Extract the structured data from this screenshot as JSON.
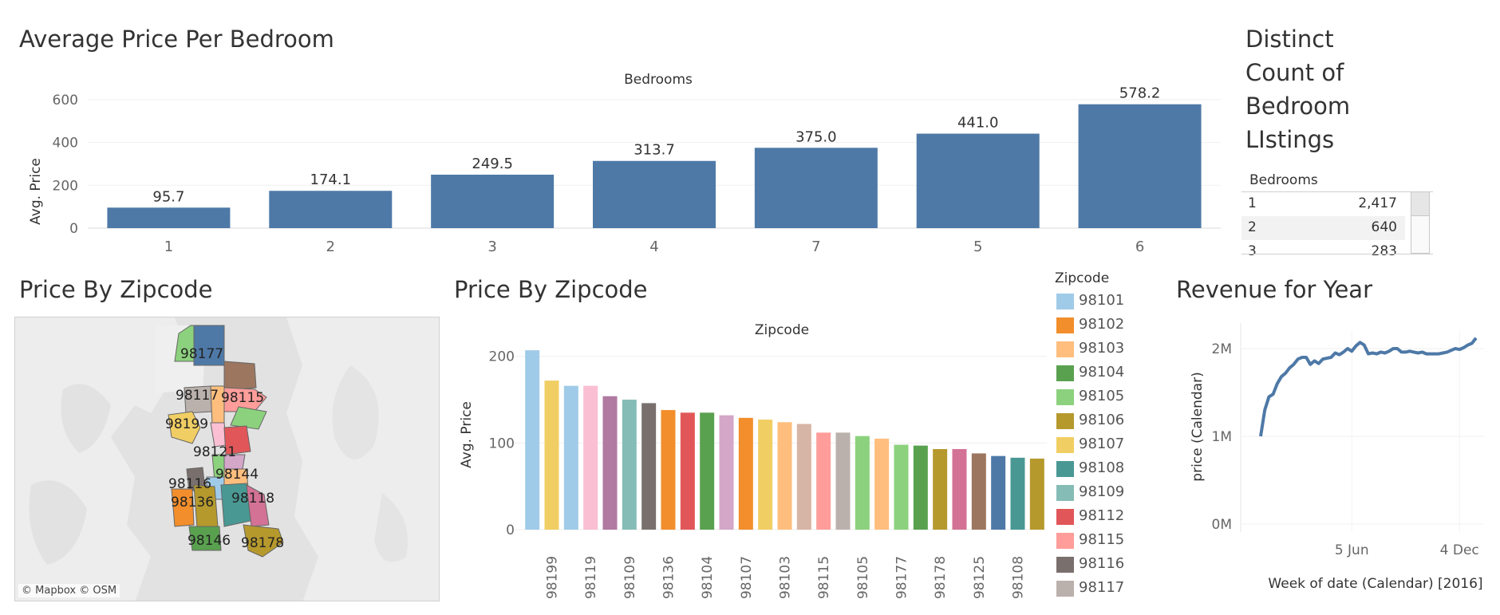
{
  "bedrooms_chart": {
    "title": "Average Price Per Bedroom",
    "header": "Bedrooms",
    "y_label": "Avg. Price",
    "y_ticks": [
      "0",
      "200",
      "400",
      "600"
    ]
  },
  "distinct_count": {
    "title_lines": [
      "Distinct",
      "Count of",
      "Bedroom",
      "LIstings"
    ],
    "column_header": "Bedrooms",
    "rows": [
      {
        "bedrooms": "1",
        "count": "2,417"
      },
      {
        "bedrooms": "2",
        "count": "640"
      },
      {
        "bedrooms": "3",
        "count": "283"
      }
    ]
  },
  "map": {
    "title": "Price By Zipcode",
    "attribution": "© Mapbox © OSM",
    "labels": [
      "98177",
      "98117",
      "98115",
      "98199",
      "98121",
      "98144",
      "98116",
      "98118",
      "98136",
      "98146",
      "98178"
    ]
  },
  "zip_chart": {
    "title": "Price By Zipcode",
    "header": "Zipcode",
    "y_label": "Avg. Price",
    "y_ticks": [
      "0",
      "100",
      "200"
    ]
  },
  "legend": {
    "title": "Zipcode",
    "items": [
      {
        "label": "98101",
        "color": "#a0cbe8"
      },
      {
        "label": "98102",
        "color": "#f28e2b"
      },
      {
        "label": "98103",
        "color": "#ffbe7d"
      },
      {
        "label": "98104",
        "color": "#59a14f"
      },
      {
        "label": "98105",
        "color": "#8cd17d"
      },
      {
        "label": "98106",
        "color": "#b6992d"
      },
      {
        "label": "98107",
        "color": "#f1ce63"
      },
      {
        "label": "98108",
        "color": "#499894"
      },
      {
        "label": "98109",
        "color": "#86bcb6"
      },
      {
        "label": "98112",
        "color": "#e15759"
      },
      {
        "label": "98115",
        "color": "#ff9d9a"
      },
      {
        "label": "98116",
        "color": "#79706e"
      },
      {
        "label": "98117",
        "color": "#bab0ac"
      }
    ]
  },
  "revenue": {
    "title": "Revenue for Year",
    "y_label": "price (Calendar)",
    "x_label": "Week of date (Calendar) [2016]",
    "y_ticks": [
      "0M",
      "1M",
      "2M"
    ],
    "x_ticks": [
      "5 Jun",
      "4 Dec"
    ]
  },
  "chart_data": [
    {
      "type": "bar",
      "title": "Average Price Per Bedroom",
      "xlabel": "Bedrooms",
      "ylabel": "Avg. Price",
      "categories": [
        "1",
        "2",
        "3",
        "4",
        "7",
        "5",
        "6"
      ],
      "values": [
        95.7,
        174.1,
        249.5,
        313.7,
        375.0,
        441.0,
        578.2
      ],
      "value_labels": [
        "95.7",
        "174.1",
        "249.5",
        "313.7",
        "375.0",
        "441.0",
        "578.2"
      ],
      "ylim": [
        0,
        700
      ],
      "color": "#4e79a7"
    },
    {
      "type": "bar",
      "title": "Price By Zipcode",
      "xlabel": "Zipcode",
      "ylabel": "Avg. Price",
      "ylim": [
        0,
        220
      ],
      "bars": [
        {
          "value": 207,
          "color": "#a0cbe8"
        },
        {
          "value": 172,
          "color": "#f1ce63",
          "label": "98199"
        },
        {
          "value": 166,
          "color": "#a0cbe8"
        },
        {
          "value": 166,
          "color": "#fabfd2",
          "label": "98119"
        },
        {
          "value": 154,
          "color": "#b07aa1"
        },
        {
          "value": 150,
          "color": "#86bcb6",
          "label": "98109"
        },
        {
          "value": 146,
          "color": "#79706e"
        },
        {
          "value": 138,
          "color": "#f28e2b",
          "label": "98136"
        },
        {
          "value": 135,
          "color": "#e15759"
        },
        {
          "value": 135,
          "color": "#59a14f",
          "label": "98104"
        },
        {
          "value": 132,
          "color": "#d4a6c8"
        },
        {
          "value": 129,
          "color": "#f28e2b",
          "label": "98107"
        },
        {
          "value": 127,
          "color": "#f1ce63"
        },
        {
          "value": 124,
          "color": "#ffbe7d",
          "label": "98103"
        },
        {
          "value": 122,
          "color": "#d7b5a6"
        },
        {
          "value": 112,
          "color": "#ff9d9a",
          "label": "98115"
        },
        {
          "value": 112,
          "color": "#bab0ac"
        },
        {
          "value": 108,
          "color": "#8cd17d",
          "label": "98105"
        },
        {
          "value": 105,
          "color": "#ffbe7d"
        },
        {
          "value": 98,
          "color": "#8cd17d",
          "label": "98177"
        },
        {
          "value": 97,
          "color": "#59a14f"
        },
        {
          "value": 93,
          "color": "#b6992d",
          "label": "98178"
        },
        {
          "value": 93,
          "color": "#d37295"
        },
        {
          "value": 88,
          "color": "#9d7660",
          "label": "98125"
        },
        {
          "value": 85,
          "color": "#4e79a7"
        },
        {
          "value": 83,
          "color": "#499894",
          "label": "98108"
        },
        {
          "value": 82,
          "color": "#b6992d"
        }
      ]
    },
    {
      "type": "line",
      "title": "Revenue for Year",
      "xlabel": "Week of date (Calendar) [2016]",
      "ylabel": "price (Calendar)",
      "ylim": [
        0,
        2200000
      ],
      "color": "#4e79a7",
      "x": [
        0,
        1,
        2,
        3,
        4,
        5,
        6,
        7,
        8,
        9,
        10,
        11,
        12,
        13,
        14,
        15,
        16,
        17,
        18,
        19,
        20,
        21,
        22,
        23,
        24,
        25,
        26,
        27,
        28,
        29,
        30,
        31,
        32,
        33,
        34,
        35,
        36,
        37,
        38,
        39,
        40,
        41,
        42,
        43,
        44,
        45,
        46,
        47,
        48,
        49,
        50,
        51,
        52
      ],
      "y": [
        1000000,
        1300000,
        1450000,
        1480000,
        1600000,
        1680000,
        1720000,
        1780000,
        1820000,
        1880000,
        1900000,
        1900000,
        1820000,
        1860000,
        1830000,
        1880000,
        1890000,
        1900000,
        1950000,
        1930000,
        1960000,
        2000000,
        1970000,
        2030000,
        2070000,
        2040000,
        1940000,
        1950000,
        1940000,
        1960000,
        1950000,
        1970000,
        2000000,
        2000000,
        1960000,
        1960000,
        1970000,
        1960000,
        1950000,
        1960000,
        1940000,
        1940000,
        1940000,
        1940000,
        1950000,
        1960000,
        1980000,
        2000000,
        1990000,
        2010000,
        2040000,
        2060000,
        2120000
      ]
    }
  ]
}
